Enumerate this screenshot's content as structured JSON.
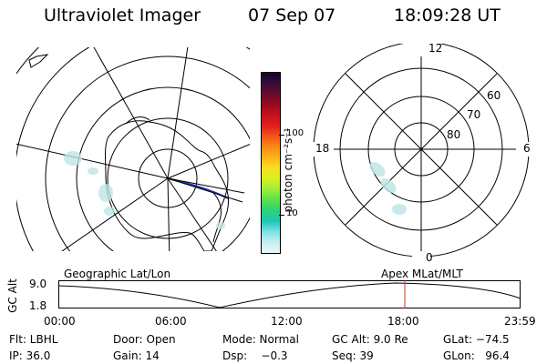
{
  "header": {
    "title": "Ultraviolet Imager",
    "date": "07 Sep 07",
    "time": "18:09:28 UT"
  },
  "colorbar": {
    "label": "photon cm⁻²s⁻¹",
    "ticks": [
      "100",
      "10"
    ],
    "colors": [
      "#0d0630",
      "#3a0a3a",
      "#6a0a2e",
      "#9b0a1e",
      "#c8101a",
      "#e0201a",
      "#f2541a",
      "#fa8a14",
      "#fcb51a",
      "#f7e01c",
      "#d6f020",
      "#9cee3a",
      "#58e04a",
      "#2bd27a",
      "#1ec7b5",
      "#7ee0e6",
      "#c8eef0",
      "#ebf6f8"
    ]
  },
  "polar_plot": {
    "labels": {
      "top": "12",
      "left": "18",
      "right": "6",
      "bottom": "0"
    },
    "lat_labels": [
      "60",
      "70",
      "80"
    ]
  },
  "timeline": {
    "left_title": "Geographic Lat/Lon",
    "right_title": "Apex MLat/MLT",
    "axis_label": "GC Alt",
    "y_ticks": [
      "9.0",
      "1.8"
    ],
    "x_ticks": [
      "00:00",
      "06:00",
      "12:00",
      "18:00",
      "23:59"
    ],
    "marker_color": "#c0392b"
  },
  "footer": {
    "rows": [
      [
        "Flt: LBHL",
        "Door: Open",
        "Mode: Normal",
        "GC Alt: 9.0 Re",
        "GLat: −74.5"
      ],
      [
        "IP: 36.0",
        "Gain: 14",
        "Dsp:    −0.3",
        "Seq: 39",
        "GLon:   96.4"
      ]
    ]
  }
}
